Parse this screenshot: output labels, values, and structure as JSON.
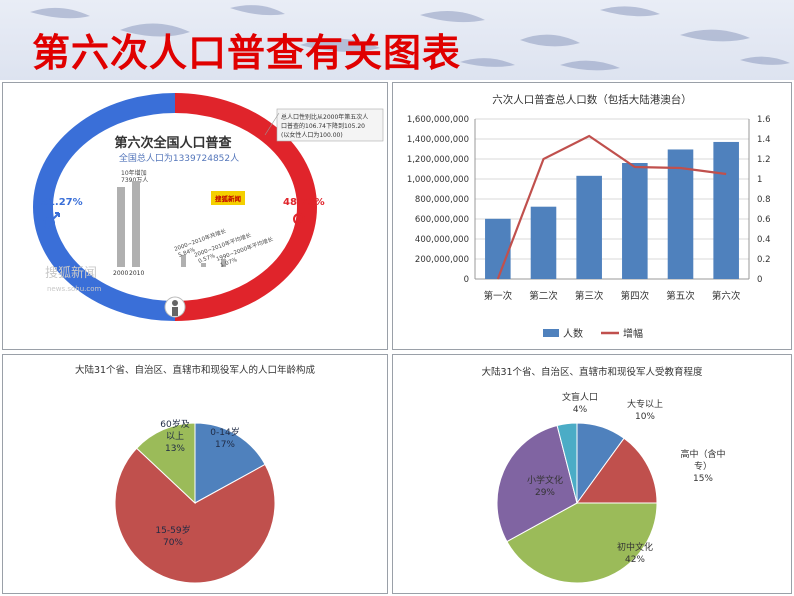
{
  "page_title": "第六次人口普查有关图表",
  "infographic": {
    "heading": "第六次全国人口普查",
    "subheading": "全国总人口为1339724852人",
    "male_pct": "51.27%",
    "female_pct": "48.73%",
    "callout": [
      "总人口性别比从2000年第五次人",
      "口普查的106.74下降到105.20",
      "(以女性人口为100.00)"
    ],
    "badge": "搜狐新闻",
    "bar_label_10yr": [
      "10年增加",
      "7390万人"
    ],
    "bar_years": [
      "2000",
      "2010"
    ],
    "rate_labels": [
      [
        "2000~2010年共增长",
        "5.84%"
      ],
      [
        "2000~2010年平均增长",
        "0.57%"
      ],
      [
        "1990~2000年平均增长",
        "1.07%"
      ]
    ],
    "watermark": "搜狐新闻",
    "watermark_url": "news.sohu.com",
    "colors": {
      "male": "#3a6fd8",
      "female": "#e0242b",
      "bar": "#b0b0b0"
    }
  },
  "chart_data": [
    {
      "type": "bar",
      "title": "六次人口普查总人口数（包括大陆港澳台）",
      "categories": [
        "第一次",
        "第二次",
        "第三次",
        "第四次",
        "第五次",
        "第六次"
      ],
      "series": [
        {
          "name": "人数",
          "type": "bar",
          "axis": "left",
          "values": [
            601938035,
            723070269,
            1031882511,
            1160017381,
            1295330000,
            1370536875
          ],
          "color": "#4f81bd"
        },
        {
          "name": "增幅",
          "type": "line",
          "axis": "right",
          "values": [
            0,
            1.2,
            1.43,
            1.12,
            1.11,
            1.05
          ],
          "color": "#c0504d"
        }
      ],
      "ylim_left": [
        0,
        1600000000
      ],
      "yticks_left": [
        "0",
        "200,000,000",
        "400,000,000",
        "600,000,000",
        "800,000,000",
        "1,000,000,000",
        "1,200,000,000",
        "1,400,000,000",
        "1,600,000,000"
      ],
      "ylim_right": [
        0,
        1.6
      ],
      "yticks_right": [
        "0",
        "0.2",
        "0.4",
        "0.6",
        "0.8",
        "1",
        "1.2",
        "1.4",
        "1.6"
      ],
      "grid": true,
      "legend": "bottom"
    },
    {
      "type": "pie",
      "title": "大陆31个省、自治区、直辖市和现役军人的人口年龄构成",
      "slices": [
        {
          "label": "0-14岁",
          "value": 17,
          "pct": "17%",
          "color": "#4f81bd"
        },
        {
          "label": "15-59岁",
          "value": 70,
          "pct": "70%",
          "color": "#c0504d"
        },
        {
          "label": "60岁及以上",
          "lines": [
            "60岁及",
            "以上"
          ],
          "value": 13,
          "pct": "13%",
          "color": "#9bbb59"
        }
      ]
    },
    {
      "type": "pie",
      "title": "大陆31个省、自治区、直辖市和现役军人受教育程度",
      "slices": [
        {
          "label": "大专以上",
          "value": 10,
          "pct": "10%",
          "color": "#4f81bd"
        },
        {
          "label": "高中（含中专）",
          "lines": [
            "高中（含中",
            "专）"
          ],
          "value": 15,
          "pct": "15%",
          "color": "#c0504d"
        },
        {
          "label": "初中文化",
          "value": 42,
          "pct": "42%",
          "color": "#9bbb59"
        },
        {
          "label": "小学文化",
          "value": 29,
          "pct": "29%",
          "color": "#8064a2"
        },
        {
          "label": "文盲人口",
          "value": 4,
          "pct": "4%",
          "color": "#4bacc6"
        }
      ]
    }
  ]
}
